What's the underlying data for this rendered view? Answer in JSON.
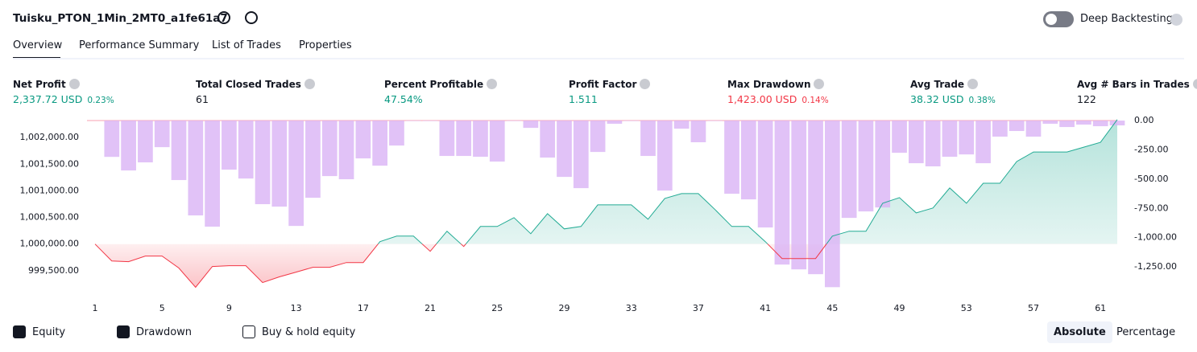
{
  "header": {
    "title": "Tuisku_PTON_1Min_2MT0_a1fe61a7",
    "toggle": "Deep Backtesting"
  },
  "tabs": [
    "Overview",
    "Performance Summary",
    "List of Trades",
    "Properties"
  ],
  "metrics": [
    {
      "label": "Net Profit",
      "value": "2,337.72 USD",
      "change": "0.23%"
    },
    {
      "label": "Total Closed Trades",
      "value": "61"
    },
    {
      "label": "Percent Profitable",
      "value": "47.54%"
    },
    {
      "label": "Profit Factor",
      "value": "1.511"
    },
    {
      "label": "Max Drawdown",
      "value": "1,423.00 USD",
      "change": "0.14%"
    },
    {
      "label": "Avg Trade",
      "value": "38.32 USD",
      "change": "0.38%"
    },
    {
      "label": "Avg # Bars in Trades",
      "value": "122"
    }
  ],
  "chart_data": {
    "type": "line",
    "x": [
      1,
      2,
      3,
      4,
      5,
      6,
      7,
      8,
      9,
      10,
      11,
      12,
      13,
      14,
      15,
      16,
      17,
      18,
      19,
      20,
      21,
      22,
      23,
      24,
      25,
      26,
      27,
      28,
      29,
      30,
      31,
      32,
      33,
      34,
      35,
      36,
      37,
      38,
      39,
      40,
      41,
      42,
      43,
      44,
      45,
      46,
      47,
      48,
      49,
      50,
      51,
      52,
      53,
      54,
      55,
      56,
      57,
      58,
      59,
      60,
      61,
      62
    ],
    "xlim": [
      1,
      62
    ],
    "xticks": [
      1,
      5,
      9,
      13,
      17,
      21,
      25,
      29,
      33,
      37,
      41,
      45,
      49,
      53,
      57,
      61
    ],
    "ylim": [
      999000,
      1002470
    ],
    "yticks": [
      {
        "value": 999500,
        "label": "999,500.00"
      },
      {
        "value": 1000000,
        "label": "1,000,000.00"
      },
      {
        "value": 1000500,
        "label": "1,000,500.00"
      },
      {
        "value": 1001000,
        "label": "1,001,000.00"
      },
      {
        "value": 1001500,
        "label": "1,001,500.00"
      },
      {
        "value": 1002000,
        "label": "1,002,000.00"
      }
    ],
    "y2lim": [
      -1510,
      69
    ],
    "y2ticks": [
      {
        "value": 0,
        "label": "0.00"
      },
      {
        "value": -250,
        "label": "-250.00"
      },
      {
        "value": -500,
        "label": "-500.00"
      },
      {
        "value": -750,
        "label": "-750.00"
      },
      {
        "value": -1000,
        "label": "-1,000.00"
      },
      {
        "value": -1250,
        "label": "-1,250.00"
      }
    ],
    "series": [
      {
        "name": "Equity",
        "color": "#22ab94",
        "negative_color": "#f23645",
        "values": [
          1000000,
          999684,
          999670,
          999775,
          999775,
          999550,
          999188,
          999580,
          999594,
          999594,
          999278,
          999384,
          999474,
          999564,
          999564,
          999654,
          999654,
          1000045,
          1000150,
          1000150,
          999865,
          1000241,
          999955,
          1000331,
          1000331,
          1000496,
          1000195,
          1000571,
          1000285,
          1000331,
          1000737,
          1000737,
          1000737,
          1000466,
          1000857,
          1000947,
          1000947,
          1000647,
          1000331,
          1000331,
          1000045,
          999729,
          999729,
          999729,
          1000150,
          1000241,
          1000241,
          1000767,
          1000872,
          1000586,
          1000677,
          1001053,
          1000767,
          1001143,
          1001143,
          1001549,
          1001729,
          1001729,
          1001729,
          1001820,
          1001910,
          1002337.72
        ]
      },
      {
        "name": "Drawdown",
        "color": "#d9b3f5",
        "axis": "y2",
        "values": [
          null,
          -310,
          -426,
          -357,
          -227,
          -508,
          -810,
          -906,
          -419,
          -495,
          -714,
          -735,
          -900,
          -659,
          -474,
          -501,
          -323,
          -385,
          -213,
          0,
          0,
          -302,
          -302,
          -309,
          -350,
          0,
          -62,
          -316,
          -481,
          -577,
          -268,
          -27,
          0,
          -302,
          -598,
          -69,
          -185,
          0,
          -625,
          -673,
          -913,
          -1230,
          -1271,
          -1312,
          -1423,
          -831,
          -776,
          -742,
          -275,
          -364,
          -391,
          -309,
          -289,
          -364,
          -137,
          -89,
          -137,
          -27,
          -55,
          -34,
          -48,
          -41
        ]
      }
    ]
  },
  "legend": [
    "Equity",
    "Drawdown",
    "Buy & hold equity"
  ],
  "modes": [
    "Absolute",
    "Percentage"
  ]
}
